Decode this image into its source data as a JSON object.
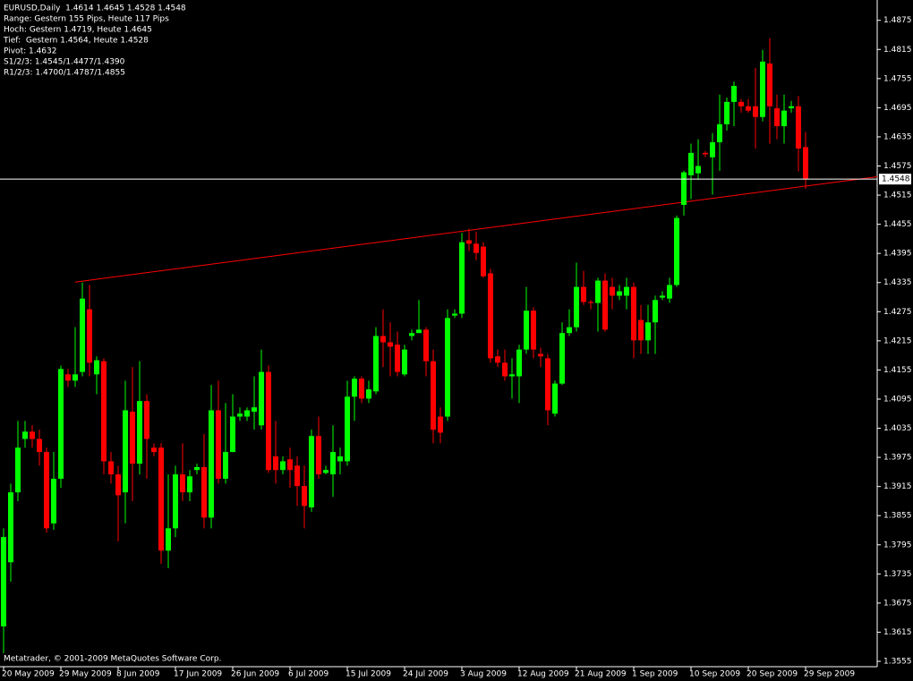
{
  "chart_data": {
    "type": "candlestick",
    "info_lines": [
      "EURUSD,Daily  1.4614 1.4645 1.4528 1.4548",
      "Range: Gestern 155 Pips, Heute 117 Pips",
      "Hoch: Gestern 1.4719, Heute 1.4645",
      "Tief:  Gestern 1.4564, Heute 1.4528",
      "Pivot: 1.4632",
      "S1/2/3: 1.4545/1.4477/1.4390",
      "R1/2/3: 1.4700/1.4787/1.4855"
    ],
    "footer": "Metatrader, © 2001-2009 MetaQuotes Software Corp.",
    "categories": [
      "20 May 2009",
      null,
      null,
      null,
      null,
      null,
      null,
      null,
      "29 May 2009",
      null,
      null,
      null,
      null,
      null,
      null,
      null,
      "8 Jun 2009",
      null,
      null,
      null,
      null,
      null,
      null,
      null,
      "17 Jun 2009",
      null,
      null,
      null,
      null,
      null,
      null,
      null,
      "26 Jun 2009",
      null,
      null,
      null,
      null,
      null,
      null,
      null,
      "6 Jul 2009",
      null,
      null,
      null,
      null,
      null,
      null,
      null,
      "15 Jul 2009",
      null,
      null,
      null,
      null,
      null,
      null,
      null,
      "24 Jul 2009",
      null,
      null,
      null,
      null,
      null,
      null,
      null,
      "3 Aug 2009",
      null,
      null,
      null,
      null,
      null,
      null,
      null,
      "12 Aug 2009",
      null,
      null,
      null,
      null,
      null,
      null,
      null,
      "21 Aug 2009",
      null,
      null,
      null,
      null,
      null,
      null,
      null,
      "1 Sep 2009",
      null,
      null,
      null,
      null,
      null,
      null,
      null,
      "10 Sep 2009",
      null,
      null,
      null,
      null,
      null,
      null,
      null,
      "20 Sep 2009",
      null,
      null,
      null,
      null,
      null,
      null,
      null,
      "29 Sep 2009"
    ],
    "open": [
      1.3627,
      1.3759,
      1.3903,
      1.4013,
      1.4028,
      1.4013,
      1.3986,
      1.3839,
      1.3931,
      1.4146,
      1.4133,
      1.4151,
      1.428,
      1.4146,
      1.4173,
      1.3967,
      1.394,
      1.3903,
      1.4069,
      1.3962,
      1.4091,
      1.3995,
      1.3995,
      1.3783,
      1.3829,
      1.394,
      1.3903,
      1.3949,
      1.3955,
      1.3851,
      1.4072,
      1.3931,
      1.3986,
      1.4059,
      1.4059,
      1.4069,
      1.4041,
      1.4151,
      1.3977,
      1.3949,
      1.3971,
      1.3958,
      1.3916,
      1.3872,
      1.4019,
      1.3943,
      1.394,
      1.3967,
      1.3967,
      1.41,
      1.4137,
      1.4096,
      1.4111,
      1.4225,
      1.4212,
      1.4207,
      1.4146,
      1.4225,
      1.4231,
      1.4238,
      1.4173,
      1.4059,
      1.4059,
      1.4267,
      1.4271,
      1.4422,
      1.4415,
      1.4409,
      1.4354,
      1.4183,
      1.417,
      1.4142,
      1.4142,
      1.4197,
      1.4277,
      1.4188,
      1.4179,
      1.4065,
      1.4127,
      1.4231,
      1.4243,
      1.4326,
      1.4295,
      1.4293,
      1.4339,
      1.4326,
      1.4308,
      1.4308,
      1.4326,
      1.4258,
      1.4216,
      1.4253,
      1.4304,
      1.4302,
      1.433,
      1.4495,
      1.4556,
      1.456,
      1.4602,
      1.4593,
      1.4624,
      1.4661,
      1.4707,
      1.4707,
      1.4698,
      1.4698,
      1.4676,
      1.4786,
      1.4694,
      1.4657,
      1.4694,
      1.4698,
      1.4614
    ],
    "high": [
      1.3829,
      1.3921,
      1.405,
      1.405,
      1.4041,
      1.4032,
      1.3995,
      1.3986,
      1.4164,
      1.4157,
      1.4243,
      1.4335,
      1.433,
      1.4183,
      1.4179,
      1.3986,
      1.3958,
      1.4133,
      1.4161,
      1.4173,
      1.4105,
      1.4004,
      1.4004,
      1.394,
      1.3958,
      1.4004,
      1.3949,
      1.3962,
      1.4023,
      1.4124,
      1.4133,
      1.4087,
      1.4105,
      1.4078,
      1.4078,
      1.4142,
      1.4197,
      1.4164,
      1.405,
      1.3977,
      1.3995,
      1.3977,
      1.3958,
      1.4032,
      1.4059,
      1.3958,
      1.4041,
      1.3995,
      1.4133,
      1.4142,
      1.4142,
      1.4133,
      1.4243,
      1.428,
      1.4253,
      1.4234,
      1.4207,
      1.4238,
      1.4299,
      1.4243,
      1.4197,
      1.4078,
      1.428,
      1.428,
      1.4437,
      1.4446,
      1.444,
      1.4418,
      1.4363,
      1.4197,
      1.4197,
      1.4179,
      1.4207,
      1.4326,
      1.4284,
      1.4201,
      1.4188,
      1.4133,
      1.4253,
      1.428,
      1.4376,
      1.4359,
      1.4299,
      1.4345,
      1.4354,
      1.4345,
      1.433,
      1.4345,
      1.4335,
      1.4289,
      1.4289,
      1.4308,
      1.4317,
      1.4345,
      1.4473,
      1.4565,
      1.4621,
      1.463,
      1.4606,
      1.4643,
      1.4722,
      1.4716,
      1.4749,
      1.4713,
      1.4713,
      1.4777,
      1.4814,
      1.4838,
      1.4722,
      1.4722,
      1.4709,
      1.4719,
      1.4645
    ],
    "low": [
      1.3572,
      1.3719,
      1.3885,
      1.3995,
      1.3995,
      1.3958,
      1.382,
      1.3826,
      1.3912,
      1.412,
      1.412,
      1.4142,
      1.4142,
      1.4105,
      1.394,
      1.3921,
      1.3802,
      1.3839,
      1.3885,
      1.394,
      1.3931,
      1.3977,
      1.3756,
      1.3747,
      1.3811,
      1.3885,
      1.3885,
      1.394,
      1.3829,
      1.3829,
      1.3921,
      1.3921,
      1.3986,
      1.405,
      1.405,
      1.4032,
      1.4032,
      1.3943,
      1.3921,
      1.394,
      1.3912,
      1.3875,
      1.3829,
      1.3863,
      1.3931,
      1.394,
      1.3894,
      1.394,
      1.3958,
      1.405,
      1.4087,
      1.4087,
      1.4105,
      1.4161,
      1.4142,
      1.4142,
      1.4142,
      1.4216,
      1.4231,
      1.4142,
      1.4004,
      1.4004,
      1.405,
      1.4262,
      1.4262,
      1.44,
      1.4381,
      1.4345,
      1.417,
      1.4161,
      1.4133,
      1.4096,
      1.4087,
      1.4188,
      1.4179,
      1.4161,
      1.4041,
      1.4059,
      1.4124,
      1.4225,
      1.4234,
      1.4289,
      1.428,
      1.4234,
      1.4234,
      1.428,
      1.4299,
      1.428,
      1.4179,
      1.4188,
      1.4188,
      1.4188,
      1.4299,
      1.4293,
      1.4326,
      1.4473,
      1.4507,
      1.4547,
      1.4593,
      1.4516,
      1.4565,
      1.4648,
      1.4657,
      1.4685,
      1.4685,
      1.4611,
      1.4667,
      1.4621,
      1.463,
      1.4621,
      1.4685,
      1.4564,
      1.4528
    ],
    "close": [
      1.3811,
      1.3903,
      1.3995,
      1.4028,
      1.4013,
      1.3986,
      1.3829,
      1.3931,
      1.4157,
      1.4133,
      1.4146,
      1.4302,
      1.417,
      1.4175,
      1.3967,
      1.394,
      1.3897,
      1.4072,
      1.3962,
      1.4091,
      1.4013,
      1.3986,
      1.3783,
      1.3829,
      1.394,
      1.3903,
      1.3936,
      1.3955,
      1.3851,
      1.4072,
      1.3931,
      1.3986,
      1.4059,
      1.4065,
      1.4072,
      1.4078,
      1.4151,
      1.3949,
      1.3949,
      1.3967,
      1.3949,
      1.3916,
      1.3875,
      1.4019,
      1.394,
      1.3949,
      1.3986,
      1.3977,
      1.41,
      1.4137,
      1.4096,
      1.4115,
      1.4225,
      1.4212,
      1.4203,
      1.4151,
      1.4197,
      1.4231,
      1.4238,
      1.4173,
      1.4032,
      1.4026,
      1.4262,
      1.4271,
      1.4418,
      1.4415,
      1.4396,
      1.4348,
      1.4179,
      1.417,
      1.4142,
      1.4146,
      1.4197,
      1.4277,
      1.4197,
      1.4183,
      1.4072,
      1.4127,
      1.4231,
      1.4243,
      1.4326,
      1.4295,
      1.4293,
      1.4339,
      1.4238,
      1.4308,
      1.4317,
      1.4326,
      1.4216,
      1.4216,
      1.4253,
      1.4299,
      1.4308,
      1.433,
      1.4468,
      1.4562,
      1.4602,
      1.4575,
      1.4599,
      1.4624,
      1.4661,
      1.4707,
      1.474,
      1.4698,
      1.4689,
      1.4676,
      1.479,
      1.4698,
      1.4657,
      1.4689,
      1.4698,
      1.4611,
      1.4548
    ],
    "up_color": "#00ff00",
    "down_color": "#ff0000",
    "ylim": [
      1.3544,
      1.4915
    ],
    "yticks": [
      1.3555,
      1.3615,
      1.3675,
      1.3735,
      1.3795,
      1.3855,
      1.3915,
      1.3975,
      1.4035,
      1.4095,
      1.4155,
      1.4215,
      1.4275,
      1.4335,
      1.4395,
      1.4455,
      1.4515,
      1.4575,
      1.4635,
      1.4695,
      1.4755,
      1.4815,
      1.4875
    ],
    "trendline": {
      "x": [
        10,
        122
      ],
      "values": [
        1.4336,
        1.4553
      ],
      "color": "#ff0000"
    }
  }
}
